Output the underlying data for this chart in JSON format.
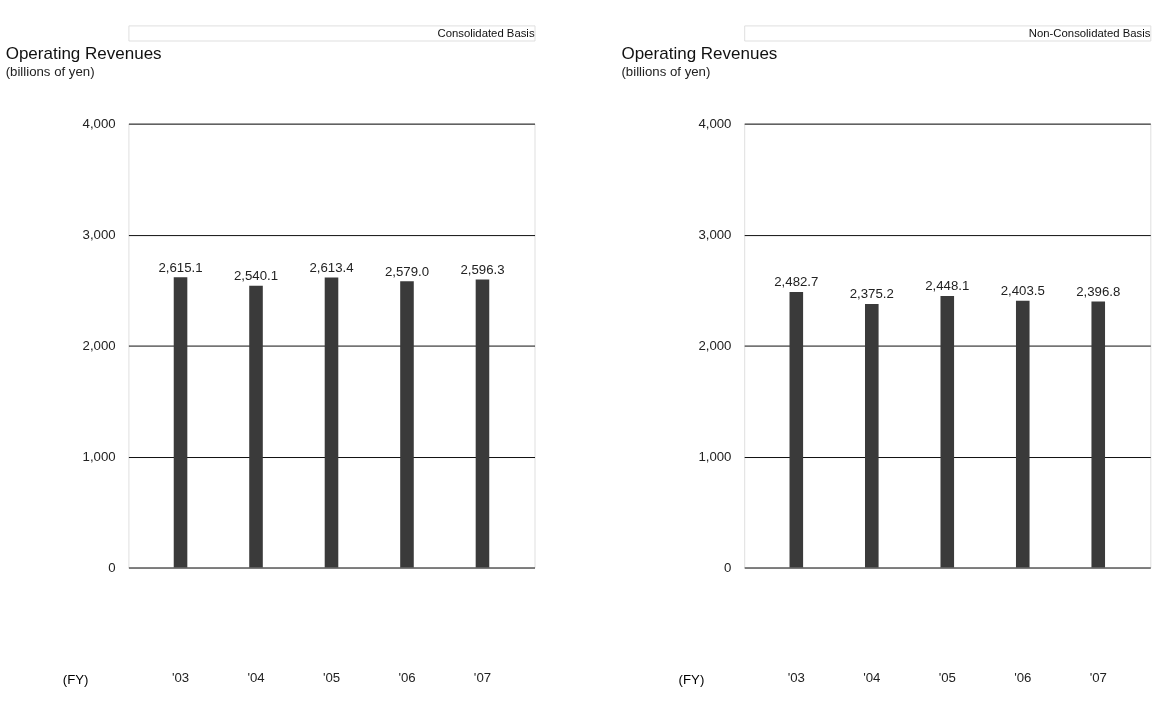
{
  "chart_data": [
    {
      "type": "bar",
      "title": "Operating Revenues",
      "subtitle": "(billions of yen)",
      "xlabel": "(FY)",
      "annotations": [
        "Consolidated Basis"
      ],
      "categories": [
        "'03",
        "'04",
        "'05",
        "'06",
        "'07"
      ],
      "values": [
        2615.1,
        2540.1,
        2613.4,
        2579.0,
        2596.3
      ],
      "value_labels": [
        "2,615.1",
        "2,540.1",
        "2,613.4",
        "2,579.0",
        "2,596.3"
      ],
      "color": "#3a3a3a",
      "ylim": [
        0,
        4000
      ],
      "yticks": [
        {
          "value": 0,
          "label": "0"
        },
        {
          "value": 1000,
          "label": "1,000"
        },
        {
          "value": 2000,
          "label": "2,000"
        },
        {
          "value": 3000,
          "label": "3,000"
        },
        {
          "value": 4000,
          "label": "4,000"
        }
      ],
      "grid": "y"
    },
    {
      "type": "bar",
      "title": "Operating Revenues",
      "subtitle": "(billions of yen)",
      "xlabel": "(FY)",
      "annotations": [
        "Non-Consolidated Basis"
      ],
      "categories": [
        "'03",
        "'04",
        "'05",
        "'06",
        "'07"
      ],
      "values": [
        2482.7,
        2375.2,
        2448.1,
        2403.5,
        2396.8
      ],
      "value_labels": [
        "2,482.7",
        "2,375.2",
        "2,448.1",
        "2,403.5",
        "2,396.8"
      ],
      "color": "#3a3a3a",
      "ylim": [
        0,
        4000
      ],
      "yticks": [
        {
          "value": 0,
          "label": "0"
        },
        {
          "value": 1000,
          "label": "1,000"
        },
        {
          "value": 2000,
          "label": "2,000"
        },
        {
          "value": 3000,
          "label": "3,000"
        },
        {
          "value": 4000,
          "label": "4,000"
        }
      ],
      "grid": "y"
    }
  ]
}
